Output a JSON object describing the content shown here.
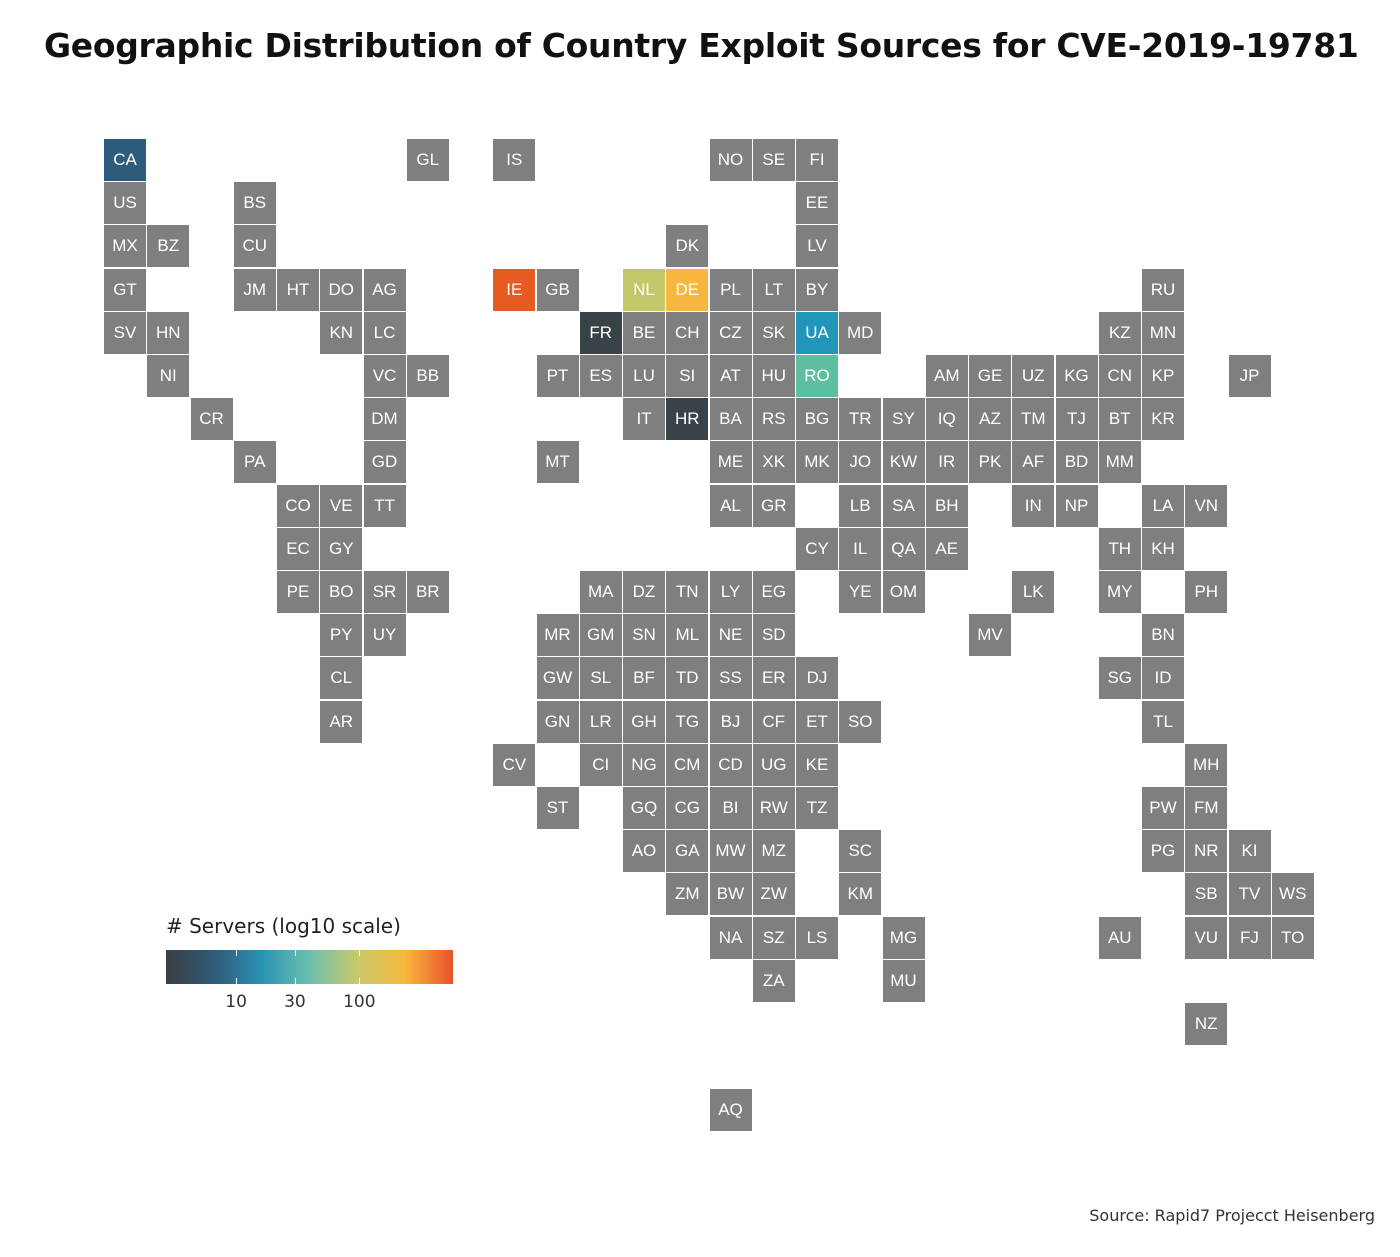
{
  "title": "Geographic Distribution of Country Exploit Sources for CVE-2019-19781",
  "source": "Source: Rapid7 Projecct Heisenberg",
  "legend": {
    "title": "# Servers (log10 scale)",
    "ticks": [
      "10",
      "30",
      "100"
    ],
    "tick_values": [
      10,
      30,
      100
    ],
    "colors": [
      "#3a3f43",
      "#2f5a78",
      "#2a92b5",
      "#6cc0ae",
      "#c8c96a",
      "#f8b73d",
      "#e8512a"
    ]
  },
  "colors": {
    "default_tile": "#7f7f7f",
    "highlighted": {
      "CA": "#2e5d7c",
      "IE": "#e75a22",
      "NL": "#c2c86a",
      "DE": "#f7b73e",
      "FR": "#394247",
      "UA": "#2196b9",
      "RO": "#5fbda1",
      "HR": "#394247"
    }
  },
  "chart_data": {
    "type": "heatmap",
    "description_scale": "log10",
    "tiles": [
      {
        "code": "CA",
        "col": 0,
        "row": 0
      },
      {
        "code": "GL",
        "col": 7,
        "row": 0
      },
      {
        "code": "IS",
        "col": 9,
        "row": 0
      },
      {
        "code": "NO",
        "col": 14,
        "row": 0
      },
      {
        "code": "SE",
        "col": 15,
        "row": 0
      },
      {
        "code": "FI",
        "col": 16,
        "row": 0
      },
      {
        "code": "US",
        "col": 0,
        "row": 1
      },
      {
        "code": "BS",
        "col": 3,
        "row": 1
      },
      {
        "code": "EE",
        "col": 16,
        "row": 1
      },
      {
        "code": "MX",
        "col": 0,
        "row": 2
      },
      {
        "code": "BZ",
        "col": 1,
        "row": 2
      },
      {
        "code": "CU",
        "col": 3,
        "row": 2
      },
      {
        "code": "DK",
        "col": 13,
        "row": 2
      },
      {
        "code": "LV",
        "col": 16,
        "row": 2
      },
      {
        "code": "GT",
        "col": 0,
        "row": 3
      },
      {
        "code": "JM",
        "col": 3,
        "row": 3
      },
      {
        "code": "HT",
        "col": 4,
        "row": 3
      },
      {
        "code": "DO",
        "col": 5,
        "row": 3
      },
      {
        "code": "AG",
        "col": 6,
        "row": 3
      },
      {
        "code": "IE",
        "col": 9,
        "row": 3
      },
      {
        "code": "GB",
        "col": 10,
        "row": 3
      },
      {
        "code": "NL",
        "col": 12,
        "row": 3
      },
      {
        "code": "DE",
        "col": 13,
        "row": 3
      },
      {
        "code": "PL",
        "col": 14,
        "row": 3
      },
      {
        "code": "LT",
        "col": 15,
        "row": 3
      },
      {
        "code": "BY",
        "col": 16,
        "row": 3
      },
      {
        "code": "RU",
        "col": 24,
        "row": 3
      },
      {
        "code": "SV",
        "col": 0,
        "row": 4
      },
      {
        "code": "HN",
        "col": 1,
        "row": 4
      },
      {
        "code": "KN",
        "col": 5,
        "row": 4
      },
      {
        "code": "LC",
        "col": 6,
        "row": 4
      },
      {
        "code": "FR",
        "col": 11,
        "row": 4
      },
      {
        "code": "BE",
        "col": 12,
        "row": 4
      },
      {
        "code": "CH",
        "col": 13,
        "row": 4
      },
      {
        "code": "CZ",
        "col": 14,
        "row": 4
      },
      {
        "code": "SK",
        "col": 15,
        "row": 4
      },
      {
        "code": "UA",
        "col": 16,
        "row": 4
      },
      {
        "code": "MD",
        "col": 17,
        "row": 4
      },
      {
        "code": "KZ",
        "col": 23,
        "row": 4
      },
      {
        "code": "MN",
        "col": 24,
        "row": 4
      },
      {
        "code": "NI",
        "col": 1,
        "row": 5
      },
      {
        "code": "VC",
        "col": 6,
        "row": 5
      },
      {
        "code": "BB",
        "col": 7,
        "row": 5
      },
      {
        "code": "PT",
        "col": 10,
        "row": 5
      },
      {
        "code": "ES",
        "col": 11,
        "row": 5
      },
      {
        "code": "LU",
        "col": 12,
        "row": 5
      },
      {
        "code": "SI",
        "col": 13,
        "row": 5
      },
      {
        "code": "AT",
        "col": 14,
        "row": 5
      },
      {
        "code": "HU",
        "col": 15,
        "row": 5
      },
      {
        "code": "RO",
        "col": 16,
        "row": 5
      },
      {
        "code": "AM",
        "col": 19,
        "row": 5
      },
      {
        "code": "GE",
        "col": 20,
        "row": 5
      },
      {
        "code": "UZ",
        "col": 21,
        "row": 5
      },
      {
        "code": "KG",
        "col": 22,
        "row": 5
      },
      {
        "code": "CN",
        "col": 23,
        "row": 5
      },
      {
        "code": "KP",
        "col": 24,
        "row": 5
      },
      {
        "code": "JP",
        "col": 26,
        "row": 5
      },
      {
        "code": "CR",
        "col": 2,
        "row": 6
      },
      {
        "code": "DM",
        "col": 6,
        "row": 6
      },
      {
        "code": "IT",
        "col": 12,
        "row": 6
      },
      {
        "code": "HR",
        "col": 13,
        "row": 6
      },
      {
        "code": "BA",
        "col": 14,
        "row": 6
      },
      {
        "code": "RS",
        "col": 15,
        "row": 6
      },
      {
        "code": "BG",
        "col": 16,
        "row": 6
      },
      {
        "code": "TR",
        "col": 17,
        "row": 6
      },
      {
        "code": "SY",
        "col": 18,
        "row": 6
      },
      {
        "code": "IQ",
        "col": 19,
        "row": 6
      },
      {
        "code": "AZ",
        "col": 20,
        "row": 6
      },
      {
        "code": "TM",
        "col": 21,
        "row": 6
      },
      {
        "code": "TJ",
        "col": 22,
        "row": 6
      },
      {
        "code": "BT",
        "col": 23,
        "row": 6
      },
      {
        "code": "KR",
        "col": 24,
        "row": 6
      },
      {
        "code": "PA",
        "col": 3,
        "row": 7
      },
      {
        "code": "GD",
        "col": 6,
        "row": 7
      },
      {
        "code": "MT",
        "col": 10,
        "row": 7
      },
      {
        "code": "ME",
        "col": 14,
        "row": 7
      },
      {
        "code": "XK",
        "col": 15,
        "row": 7
      },
      {
        "code": "MK",
        "col": 16,
        "row": 7
      },
      {
        "code": "JO",
        "col": 17,
        "row": 7
      },
      {
        "code": "KW",
        "col": 18,
        "row": 7
      },
      {
        "code": "IR",
        "col": 19,
        "row": 7
      },
      {
        "code": "PK",
        "col": 20,
        "row": 7
      },
      {
        "code": "AF",
        "col": 21,
        "row": 7
      },
      {
        "code": "BD",
        "col": 22,
        "row": 7
      },
      {
        "code": "MM",
        "col": 23,
        "row": 7
      },
      {
        "code": "CO",
        "col": 4,
        "row": 8
      },
      {
        "code": "VE",
        "col": 5,
        "row": 8
      },
      {
        "code": "TT",
        "col": 6,
        "row": 8
      },
      {
        "code": "AL",
        "col": 14,
        "row": 8
      },
      {
        "code": "GR",
        "col": 15,
        "row": 8
      },
      {
        "code": "LB",
        "col": 17,
        "row": 8
      },
      {
        "code": "SA",
        "col": 18,
        "row": 8
      },
      {
        "code": "BH",
        "col": 19,
        "row": 8
      },
      {
        "code": "IN",
        "col": 21,
        "row": 8
      },
      {
        "code": "NP",
        "col": 22,
        "row": 8
      },
      {
        "code": "LA",
        "col": 24,
        "row": 8
      },
      {
        "code": "VN",
        "col": 25,
        "row": 8
      },
      {
        "code": "EC",
        "col": 4,
        "row": 9
      },
      {
        "code": "GY",
        "col": 5,
        "row": 9
      },
      {
        "code": "CY",
        "col": 16,
        "row": 9
      },
      {
        "code": "IL",
        "col": 17,
        "row": 9
      },
      {
        "code": "QA",
        "col": 18,
        "row": 9
      },
      {
        "code": "AE",
        "col": 19,
        "row": 9
      },
      {
        "code": "TH",
        "col": 23,
        "row": 9
      },
      {
        "code": "KH",
        "col": 24,
        "row": 9
      },
      {
        "code": "PE",
        "col": 4,
        "row": 10
      },
      {
        "code": "BO",
        "col": 5,
        "row": 10
      },
      {
        "code": "SR",
        "col": 6,
        "row": 10
      },
      {
        "code": "BR",
        "col": 7,
        "row": 10
      },
      {
        "code": "MA",
        "col": 11,
        "row": 10
      },
      {
        "code": "DZ",
        "col": 12,
        "row": 10
      },
      {
        "code": "TN",
        "col": 13,
        "row": 10
      },
      {
        "code": "LY",
        "col": 14,
        "row": 10
      },
      {
        "code": "EG",
        "col": 15,
        "row": 10
      },
      {
        "code": "YE",
        "col": 17,
        "row": 10
      },
      {
        "code": "OM",
        "col": 18,
        "row": 10
      },
      {
        "code": "LK",
        "col": 21,
        "row": 10
      },
      {
        "code": "MY",
        "col": 23,
        "row": 10
      },
      {
        "code": "PH",
        "col": 25,
        "row": 10
      },
      {
        "code": "PY",
        "col": 5,
        "row": 11
      },
      {
        "code": "UY",
        "col": 6,
        "row": 11
      },
      {
        "code": "MR",
        "col": 10,
        "row": 11
      },
      {
        "code": "GM",
        "col": 11,
        "row": 11
      },
      {
        "code": "SN",
        "col": 12,
        "row": 11
      },
      {
        "code": "ML",
        "col": 13,
        "row": 11
      },
      {
        "code": "NE",
        "col": 14,
        "row": 11
      },
      {
        "code": "SD",
        "col": 15,
        "row": 11
      },
      {
        "code": "MV",
        "col": 20,
        "row": 11
      },
      {
        "code": "BN",
        "col": 24,
        "row": 11
      },
      {
        "code": "CL",
        "col": 5,
        "row": 12
      },
      {
        "code": "GW",
        "col": 10,
        "row": 12
      },
      {
        "code": "SL",
        "col": 11,
        "row": 12
      },
      {
        "code": "BF",
        "col": 12,
        "row": 12
      },
      {
        "code": "TD",
        "col": 13,
        "row": 12
      },
      {
        "code": "SS",
        "col": 14,
        "row": 12
      },
      {
        "code": "ER",
        "col": 15,
        "row": 12
      },
      {
        "code": "DJ",
        "col": 16,
        "row": 12
      },
      {
        "code": "SG",
        "col": 23,
        "row": 12
      },
      {
        "code": "ID",
        "col": 24,
        "row": 12
      },
      {
        "code": "AR",
        "col": 5,
        "row": 13
      },
      {
        "code": "GN",
        "col": 10,
        "row": 13
      },
      {
        "code": "LR",
        "col": 11,
        "row": 13
      },
      {
        "code": "GH",
        "col": 12,
        "row": 13
      },
      {
        "code": "TG",
        "col": 13,
        "row": 13
      },
      {
        "code": "BJ",
        "col": 14,
        "row": 13
      },
      {
        "code": "CF",
        "col": 15,
        "row": 13
      },
      {
        "code": "ET",
        "col": 16,
        "row": 13
      },
      {
        "code": "SO",
        "col": 17,
        "row": 13
      },
      {
        "code": "TL",
        "col": 24,
        "row": 13
      },
      {
        "code": "CV",
        "col": 9,
        "row": 14
      },
      {
        "code": "CI",
        "col": 11,
        "row": 14
      },
      {
        "code": "NG",
        "col": 12,
        "row": 14
      },
      {
        "code": "CM",
        "col": 13,
        "row": 14
      },
      {
        "code": "CD",
        "col": 14,
        "row": 14
      },
      {
        "code": "UG",
        "col": 15,
        "row": 14
      },
      {
        "code": "KE",
        "col": 16,
        "row": 14
      },
      {
        "code": "MH",
        "col": 25,
        "row": 14
      },
      {
        "code": "ST",
        "col": 10,
        "row": 15
      },
      {
        "code": "GQ",
        "col": 12,
        "row": 15
      },
      {
        "code": "CG",
        "col": 13,
        "row": 15
      },
      {
        "code": "BI",
        "col": 14,
        "row": 15
      },
      {
        "code": "RW",
        "col": 15,
        "row": 15
      },
      {
        "code": "TZ",
        "col": 16,
        "row": 15
      },
      {
        "code": "PW",
        "col": 24,
        "row": 15
      },
      {
        "code": "FM",
        "col": 25,
        "row": 15
      },
      {
        "code": "AO",
        "col": 12,
        "row": 16
      },
      {
        "code": "GA",
        "col": 13,
        "row": 16
      },
      {
        "code": "MW",
        "col": 14,
        "row": 16
      },
      {
        "code": "MZ",
        "col": 15,
        "row": 16
      },
      {
        "code": "SC",
        "col": 17,
        "row": 16
      },
      {
        "code": "PG",
        "col": 24,
        "row": 16
      },
      {
        "code": "NR",
        "col": 25,
        "row": 16
      },
      {
        "code": "KI",
        "col": 26,
        "row": 16
      },
      {
        "code": "ZM",
        "col": 13,
        "row": 17
      },
      {
        "code": "BW",
        "col": 14,
        "row": 17
      },
      {
        "code": "ZW",
        "col": 15,
        "row": 17
      },
      {
        "code": "KM",
        "col": 17,
        "row": 17
      },
      {
        "code": "SB",
        "col": 25,
        "row": 17
      },
      {
        "code": "TV",
        "col": 26,
        "row": 17
      },
      {
        "code": "WS",
        "col": 27,
        "row": 17
      },
      {
        "code": "NA",
        "col": 14,
        "row": 18
      },
      {
        "code": "SZ",
        "col": 15,
        "row": 18
      },
      {
        "code": "LS",
        "col": 16,
        "row": 18
      },
      {
        "code": "MG",
        "col": 18,
        "row": 18
      },
      {
        "code": "AU",
        "col": 23,
        "row": 18
      },
      {
        "code": "VU",
        "col": 25,
        "row": 18
      },
      {
        "code": "FJ",
        "col": 26,
        "row": 18
      },
      {
        "code": "TO",
        "col": 27,
        "row": 18
      },
      {
        "code": "ZA",
        "col": 15,
        "row": 19
      },
      {
        "code": "MU",
        "col": 18,
        "row": 19
      },
      {
        "code": "NZ",
        "col": 25,
        "row": 20
      },
      {
        "code": "AQ",
        "col": 14,
        "row": 22
      }
    ]
  }
}
